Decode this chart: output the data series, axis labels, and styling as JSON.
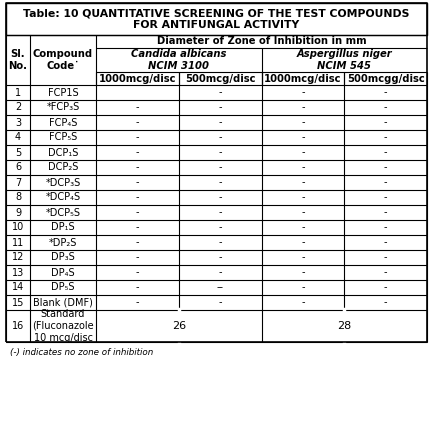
{
  "title_line1": "Table: 10 QUANTITATIVE SCREENING OF THE TEST COMPOUNDS",
  "title_line2": "FOR ANTIFUNGAL ACTIVITY",
  "col_header1": "Diameter of Zone of Inhibition in mm",
  "col_header2a": "Candida albicans\nNCIM 3100",
  "col_header2b": "Aspergillus niger\nNCIM 545",
  "col_header3": [
    "1000mcg/disc",
    "500mcg/disc",
    "1000mcg/disc",
    "500mcgg/disc"
  ],
  "rows": [
    [
      "1",
      "FCP1S",
      "",
      "-",
      "-",
      "-"
    ],
    [
      "2",
      "*FCP₃S",
      "-",
      "-",
      "-",
      "-"
    ],
    [
      "3",
      "FCP₄S",
      "-",
      "-",
      "-",
      "-"
    ],
    [
      "4",
      "FCP₅S",
      "-",
      "-",
      "-",
      "-"
    ],
    [
      "5",
      "DCP₁S",
      "-",
      "-",
      "-",
      "-"
    ],
    [
      "6",
      "DCP₂S",
      "-",
      "-",
      "-",
      "-"
    ],
    [
      "7",
      "*DCP₃S",
      "-",
      "-",
      "-",
      "-"
    ],
    [
      "8",
      "*DCP₄S",
      "-",
      "-",
      "-",
      "-"
    ],
    [
      "9",
      "*DCP₅S",
      "-",
      "-",
      "-",
      "-"
    ],
    [
      "10",
      "DP₁S",
      "-",
      "-",
      "-",
      "-"
    ],
    [
      "11",
      "*DP₂S",
      "-",
      "-",
      "-",
      "-"
    ],
    [
      "12",
      "DP₃S",
      "-",
      "-",
      "-",
      "-"
    ],
    [
      "13",
      "DP₄S",
      "-",
      "-",
      "-",
      "-"
    ],
    [
      "14",
      "DP₅S",
      "-",
      "--",
      "-",
      "-"
    ],
    [
      "15",
      "Blank (DMF)",
      "-",
      "-",
      "-",
      "-"
    ],
    [
      "16",
      "Standard\n(Fluconazole\n10 mcg/disc",
      "26",
      "",
      "28",
      ""
    ]
  ],
  "footnote": "(-) indicates no zone of inhibition",
  "bg_color": "#ffffff",
  "line_color": "#000000",
  "text_color": "#000000",
  "title_fontsize": 7.8,
  "cell_fontsize": 7.0,
  "header_fontsize": 7.2
}
